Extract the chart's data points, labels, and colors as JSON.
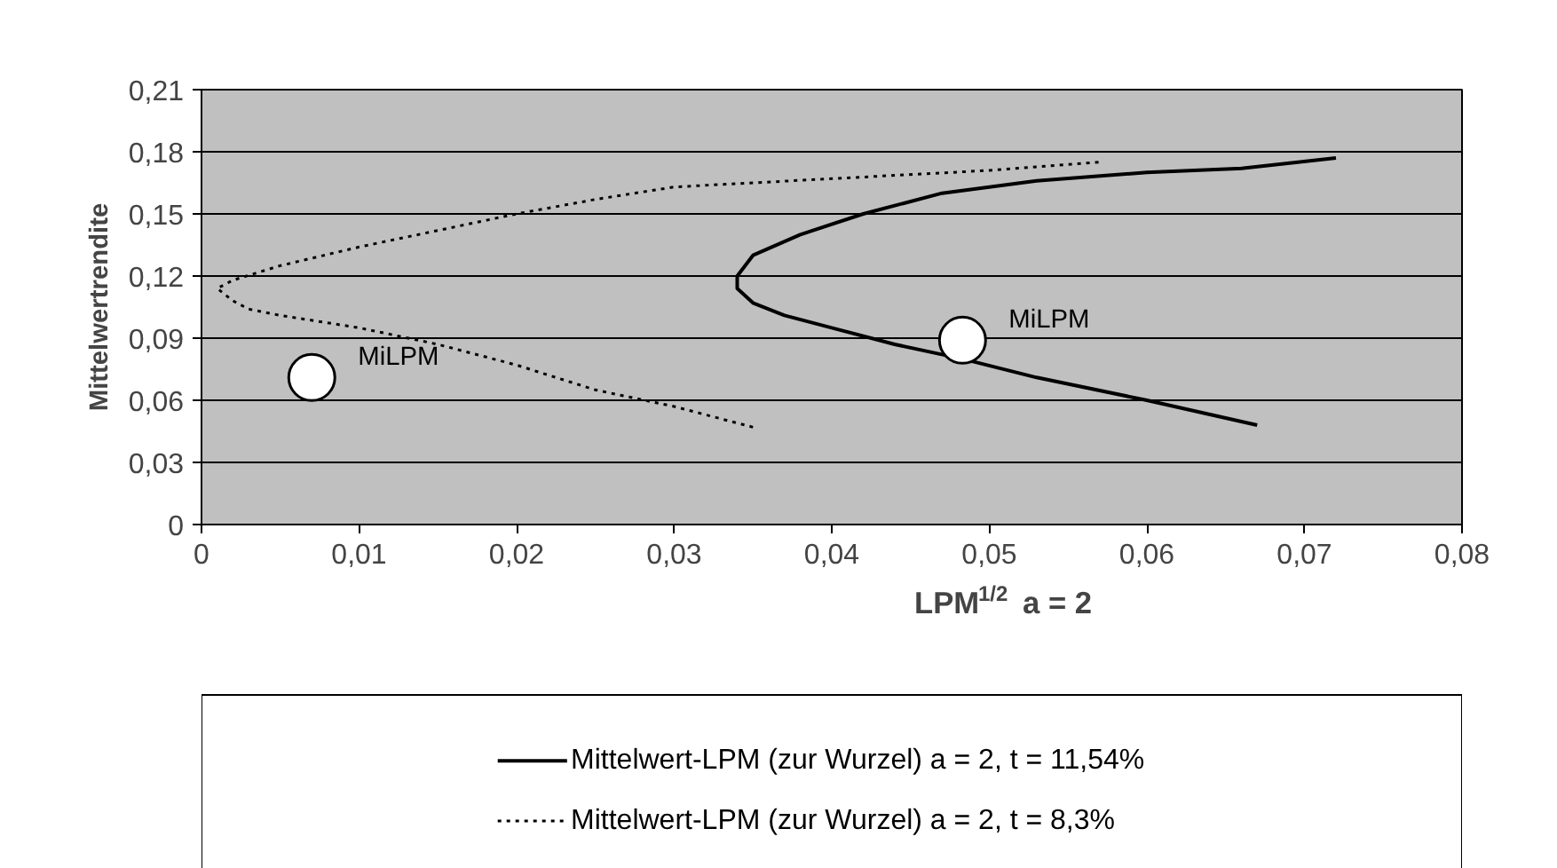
{
  "chart_data": {
    "type": "line",
    "xlabel": "LPM$^{1/2}$ a = 2",
    "ylabel": "Mittelwertrendite",
    "xlim": [
      0,
      0.08
    ],
    "xticks": [
      {
        "value": 0,
        "label": "0"
      },
      {
        "value": 0.01,
        "label": "0,01"
      },
      {
        "value": 0.02,
        "label": "0,02"
      },
      {
        "value": 0.03,
        "label": "0,03"
      },
      {
        "value": 0.04,
        "label": "0,04"
      },
      {
        "value": 0.05,
        "label": "0,05"
      },
      {
        "value": 0.06,
        "label": "0,06"
      },
      {
        "value": 0.07,
        "label": "0,07"
      },
      {
        "value": 0.08,
        "label": "0,08"
      }
    ],
    "ylim": [
      0,
      0.21
    ],
    "yticks": [
      {
        "value": 0,
        "label": "0"
      },
      {
        "value": 0.03,
        "label": "0,03"
      },
      {
        "value": 0.06,
        "label": "0,06"
      },
      {
        "value": 0.09,
        "label": "0,09"
      },
      {
        "value": 0.12,
        "label": "0,12"
      },
      {
        "value": 0.15,
        "label": "0,15"
      },
      {
        "value": 0.18,
        "label": "0,18"
      },
      {
        "value": 0.21,
        "label": "0,21"
      }
    ],
    "grid": "y",
    "legend": "bottom",
    "series": [
      {
        "name": "Mittelwert-LPM (zur Wurzel) a = 2, t = 11,54%",
        "color": "#000000",
        "line_style": "solid",
        "x": [
          0.067,
          0.06,
          0.053,
          0.0483,
          0.044,
          0.04,
          0.037,
          0.035,
          0.034,
          0.034,
          0.035,
          0.038,
          0.042,
          0.047,
          0.053,
          0.06,
          0.066,
          0.072
        ],
        "values": [
          0.048,
          0.06,
          0.071,
          0.08,
          0.087,
          0.095,
          0.101,
          0.107,
          0.114,
          0.12,
          0.13,
          0.14,
          0.15,
          0.16,
          0.166,
          0.17,
          0.172,
          0.177
        ]
      },
      {
        "name": "Mittelwert-LPM (zur Wurzel) a = 2, t = 8,3%",
        "color": "#000000",
        "line_style": "dotted",
        "x": [
          0.035,
          0.03,
          0.025,
          0.02,
          0.015,
          0.01,
          0.005,
          0.003,
          0.002,
          0.001,
          0.002,
          0.005,
          0.01,
          0.015,
          0.02,
          0.025,
          0.03,
          0.04,
          0.05,
          0.057
        ],
        "values": [
          0.047,
          0.057,
          0.065,
          0.077,
          0.087,
          0.095,
          0.101,
          0.104,
          0.108,
          0.114,
          0.118,
          0.125,
          0.134,
          0.142,
          0.15,
          0.157,
          0.163,
          0.167,
          0.171,
          0.175
        ]
      },
      {
        "type": "scatter",
        "marker": "circle",
        "color": "#ffffff",
        "x": [
          0.007,
          0.0483
        ],
        "values": [
          0.071,
          0.089
        ],
        "value_labels": [
          "MiLPM",
          "MiLPM"
        ]
      }
    ]
  }
}
